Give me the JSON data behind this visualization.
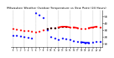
{
  "title": "Milwaukee Weather Outdoor Temperature vs Dew Point (24 Hours)",
  "title_fontsize": 3.2,
  "background_color": "#ffffff",
  "plot_bg_color": "#ffffff",
  "grid_color": "#888888",
  "hours": [
    0,
    1,
    2,
    3,
    4,
    5,
    6,
    7,
    8,
    9,
    10,
    11,
    12,
    13,
    14,
    15,
    16,
    17,
    18,
    19,
    20,
    21,
    22,
    23
  ],
  "temp": [
    32,
    31,
    30,
    29,
    29,
    28,
    27,
    28,
    30,
    32,
    33,
    33,
    34,
    35,
    35,
    34,
    34,
    33,
    32,
    32,
    33,
    34,
    35,
    34
  ],
  "dew": [
    22,
    22,
    21,
    20,
    19,
    18,
    55,
    52,
    48,
    30,
    20,
    18,
    16,
    18,
    17,
    16,
    14,
    13,
    12,
    11,
    11,
    12,
    13,
    13
  ],
  "temp_color": "#ff0000",
  "dew_color": "#0000ff",
  "ylim": [
    5,
    60
  ],
  "ytick_vals": [
    10,
    20,
    30,
    40,
    50
  ],
  "vgrid_x": [
    0,
    3,
    6,
    9,
    12,
    15,
    18,
    21,
    23
  ],
  "temp_dot_segments": [
    [
      0,
      1,
      2,
      3,
      4,
      5,
      6,
      7,
      8,
      9,
      10,
      11,
      12,
      13,
      14,
      15,
      16,
      17,
      18,
      19,
      20,
      21,
      22,
      23
    ],
    [
      32,
      31,
      30,
      29,
      29,
      28,
      27,
      28,
      30,
      32,
      33,
      33,
      34,
      35,
      35,
      34,
      34,
      33,
      32,
      32,
      33,
      34,
      35,
      34
    ]
  ],
  "temp_solid_segs": [
    {
      "x": [
        12,
        13,
        14,
        15
      ],
      "y": [
        34,
        35,
        35,
        34
      ]
    },
    {
      "x": [
        16,
        17
      ],
      "y": [
        34,
        33
      ]
    },
    {
      "x": [
        20,
        21,
        22
      ],
      "y": [
        33,
        34,
        35
      ]
    }
  ],
  "dew_dot_segments": [
    [
      0,
      1,
      2,
      3,
      4,
      5,
      6,
      7,
      8,
      9,
      10,
      11,
      12,
      13,
      14,
      15,
      16,
      17,
      18,
      19,
      20,
      21,
      22,
      23
    ],
    [
      22,
      22,
      21,
      20,
      19,
      18,
      55,
      52,
      48,
      30,
      20,
      18,
      16,
      18,
      17,
      16,
      14,
      13,
      12,
      11,
      11,
      12,
      13,
      13
    ]
  ],
  "dew_solid_segs": [
    {
      "x": [
        18,
        19,
        20
      ],
      "y": [
        12,
        11,
        11
      ]
    }
  ],
  "black_dots_x": [
    9,
    10,
    11,
    12,
    13,
    14
  ],
  "black_dots_y": [
    32,
    33,
    33,
    34,
    35,
    35
  ],
  "markersize": 1.8,
  "dotted_lw": 0.5,
  "solid_lw": 1.5
}
